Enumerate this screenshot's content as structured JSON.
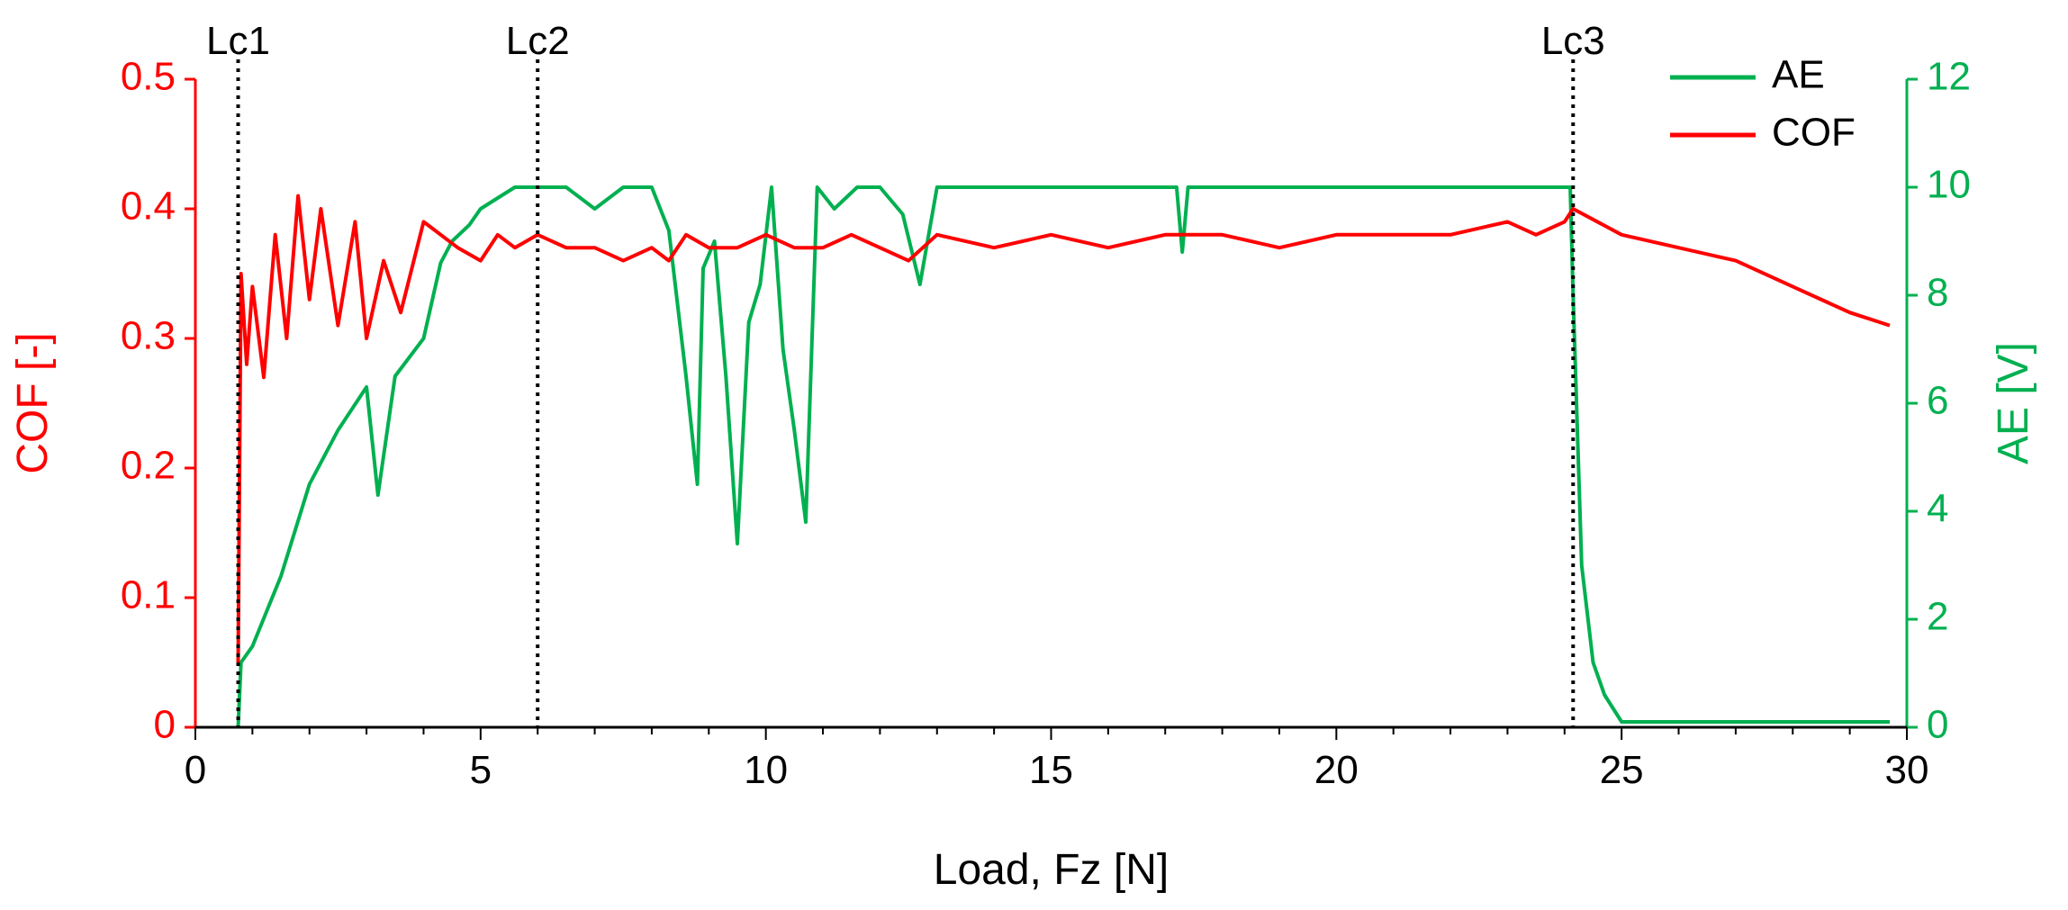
{
  "colors": {
    "cof": "#ff0000",
    "ae": "#00b050",
    "axis": "#000000",
    "marker": "#000000"
  },
  "chart_data": {
    "type": "line",
    "title": "",
    "xlabel": "Load, Fz [N]",
    "ylabel_left": "COF [-]",
    "ylabel_right": "AE [V]",
    "xlim": [
      0,
      30
    ],
    "ylim_left": [
      0,
      0.5
    ],
    "ylim_right": [
      0,
      12
    ],
    "x_ticks": [
      "0",
      "5",
      "10",
      "15",
      "20",
      "25",
      "30"
    ],
    "y_left_ticks": [
      "0",
      "0.1",
      "0.2",
      "0.3",
      "0.4",
      "0.5"
    ],
    "y_right_ticks": [
      "0",
      "2",
      "4",
      "6",
      "8",
      "10",
      "12"
    ],
    "grid": false,
    "legend_position": "top-right",
    "markers": [
      {
        "label": "Lc1",
        "x": 0.75
      },
      {
        "label": "Lc2",
        "x": 6.0
      },
      {
        "label": "Lc3",
        "x": 24.15
      }
    ],
    "series": [
      {
        "name": "AE",
        "axis": "right",
        "x": [
          0.75,
          0.8,
          1.0,
          1.5,
          2.0,
          2.5,
          3.0,
          3.2,
          3.5,
          4.0,
          4.3,
          4.5,
          4.8,
          5.0,
          5.3,
          5.6,
          6.0,
          6.5,
          7.0,
          7.5,
          8.0,
          8.3,
          8.6,
          8.8,
          8.9,
          9.1,
          9.3,
          9.5,
          9.7,
          9.9,
          10.1,
          10.3,
          10.5,
          10.7,
          10.9,
          11.2,
          11.6,
          12.0,
          12.4,
          12.7,
          13.0,
          13.5,
          15.0,
          17.2,
          17.3,
          17.4,
          20.0,
          23.0,
          24.1,
          24.15,
          24.3,
          24.5,
          24.7,
          25.0,
          26.0,
          27.0,
          28.0,
          29.0,
          29.7
        ],
        "values": [
          0.0,
          1.2,
          1.5,
          2.8,
          4.5,
          5.5,
          6.3,
          4.3,
          6.5,
          7.2,
          8.6,
          9.0,
          9.3,
          9.6,
          9.8,
          10.0,
          10.0,
          10.0,
          9.6,
          10.0,
          10.0,
          9.2,
          6.5,
          4.5,
          8.5,
          9.0,
          6.5,
          3.4,
          7.5,
          8.2,
          10.0,
          7.0,
          5.5,
          3.8,
          10.0,
          9.6,
          10.0,
          10.0,
          9.5,
          8.2,
          10.0,
          10.0,
          10.0,
          10.0,
          8.8,
          10.0,
          10.0,
          10.0,
          10.0,
          8.0,
          3.0,
          1.2,
          0.6,
          0.1,
          0.1,
          0.1,
          0.1,
          0.1,
          0.1
        ]
      },
      {
        "name": "COF",
        "axis": "left",
        "x": [
          0.75,
          0.8,
          0.9,
          1.0,
          1.2,
          1.4,
          1.6,
          1.8,
          2.0,
          2.2,
          2.5,
          2.8,
          3.0,
          3.3,
          3.6,
          4.0,
          4.3,
          4.6,
          5.0,
          5.3,
          5.6,
          6.0,
          6.5,
          7.0,
          7.5,
          8.0,
          8.3,
          8.6,
          9.0,
          9.5,
          10.0,
          10.5,
          11.0,
          11.5,
          12.0,
          12.5,
          13.0,
          14.0,
          15.0,
          16.0,
          17.0,
          18.0,
          19.0,
          20.0,
          21.0,
          22.0,
          23.0,
          23.5,
          24.0,
          24.15,
          25.0,
          26.0,
          27.0,
          28.0,
          29.0,
          29.7
        ],
        "values": [
          0.05,
          0.35,
          0.28,
          0.34,
          0.27,
          0.38,
          0.3,
          0.41,
          0.33,
          0.4,
          0.31,
          0.39,
          0.3,
          0.36,
          0.32,
          0.39,
          0.38,
          0.37,
          0.36,
          0.38,
          0.37,
          0.38,
          0.37,
          0.37,
          0.36,
          0.37,
          0.36,
          0.38,
          0.37,
          0.37,
          0.38,
          0.37,
          0.37,
          0.38,
          0.37,
          0.36,
          0.38,
          0.37,
          0.38,
          0.37,
          0.38,
          0.38,
          0.37,
          0.38,
          0.38,
          0.38,
          0.39,
          0.38,
          0.39,
          0.4,
          0.38,
          0.37,
          0.36,
          0.34,
          0.32,
          0.31
        ]
      }
    ]
  }
}
